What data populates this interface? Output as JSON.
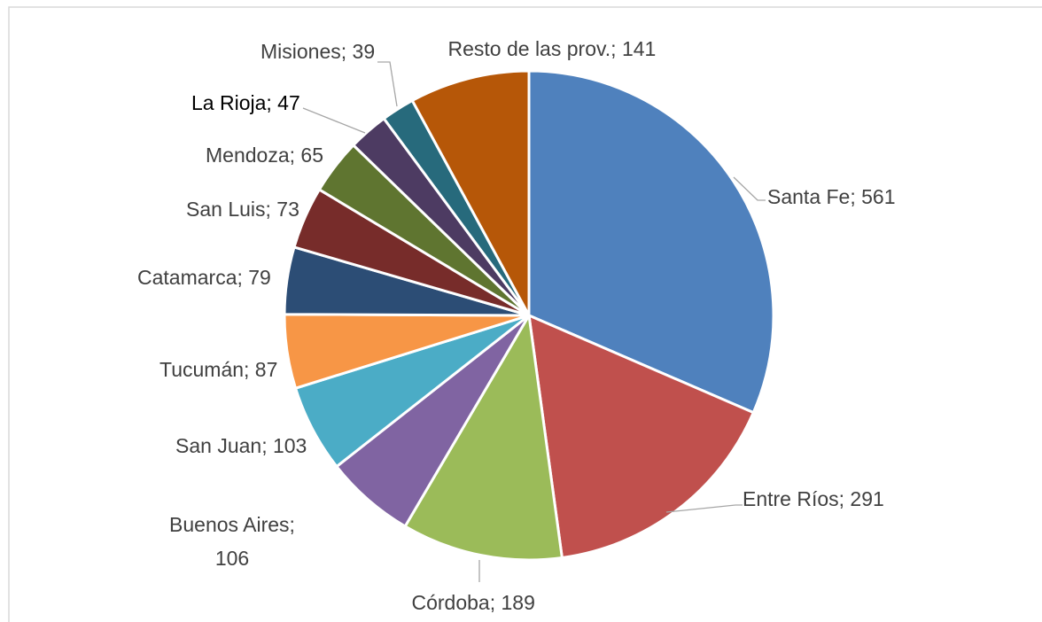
{
  "chart_data": {
    "type": "pie",
    "categories": [
      "Santa Fe",
      "Entre Ríos",
      "Córdoba",
      "Buenos Aires",
      "San Juan",
      "Tucumán",
      "Catamarca",
      "San Luis",
      "Mendoza",
      "La Rioja",
      "Misiones",
      "Resto de las prov."
    ],
    "values": [
      561,
      291,
      189,
      106,
      103,
      87,
      79,
      73,
      65,
      47,
      39,
      141
    ],
    "value_labels": [
      "Santa Fe; 561",
      "Entre Ríos; 291",
      "Córdoba; 189",
      "Buenos Aires; 106",
      "San Juan; 103",
      "Tucumán; 87",
      "Catamarca; 79",
      "San Luis; 73",
      "Mendoza; 65",
      "La Rioja; 47",
      "Misiones; 39",
      "Resto de las prov.; 141"
    ],
    "colors": [
      "#4f81bd",
      "#c0504d",
      "#9bbb59",
      "#8064a2",
      "#4bacc6",
      "#f79646",
      "#2c4d75",
      "#772c2a",
      "#5f7530",
      "#4d3b62",
      "#276a7c",
      "#b65708"
    ]
  }
}
